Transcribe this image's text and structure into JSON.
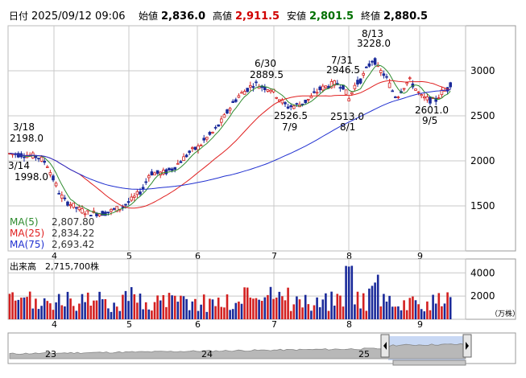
{
  "header": {
    "date_label": "日付",
    "datetime": "2025/09/12 09:06",
    "open_label": "始値",
    "open": "2,836.0",
    "high_label": "高値",
    "high": "2,911.5",
    "low_label": "安値",
    "low": "2,801.5",
    "close_label": "終値",
    "close": "2,880.5"
  },
  "colors": {
    "up": "#d32020",
    "down": "#1a2a9a",
    "ma5": "#2e8b2e",
    "ma25": "#e02020",
    "ma75": "#2030d0",
    "high_value": "#d00000",
    "low_value": "#007000",
    "grid": "#c8c8c8",
    "frame": "#999999"
  },
  "chart_data": [
    {
      "type": "candlestick",
      "x_axis": {
        "ticks": [
          "4",
          "5",
          "6",
          "7",
          "8",
          "9"
        ],
        "unit": "month"
      },
      "y_axis": {
        "ticks": [
          1500,
          2000,
          2500,
          3000
        ],
        "range": [
          1000,
          3500
        ],
        "position": "right"
      },
      "legend": [
        {
          "name": "MA(5)",
          "value": "2,807.80",
          "color": "#2e8b2e"
        },
        {
          "name": "MA(25)",
          "value": "2,834.22",
          "color": "#e02020"
        },
        {
          "name": "MA(75)",
          "value": "2,693.42",
          "color": "#2030d0"
        }
      ],
      "annotations": [
        {
          "label": "3/18",
          "value": "2198.0",
          "kind": "high"
        },
        {
          "label": "3/14",
          "value": "1998.0",
          "kind": "low"
        },
        {
          "label": "6/30",
          "value": "2889.5",
          "kind": "high"
        },
        {
          "label": "7/9",
          "value": "2526.5",
          "kind": "low"
        },
        {
          "label": "7/31",
          "value": "2946.5",
          "kind": "high"
        },
        {
          "label": "8/1",
          "value": "2513.0",
          "kind": "low"
        },
        {
          "label": "8/13",
          "value": "3228.0",
          "kind": "high"
        },
        {
          "label": "9/5",
          "value": "2601.0",
          "kind": "low"
        }
      ]
    },
    {
      "type": "bar",
      "title": "出来高",
      "latest_value": "2,715,700株",
      "x_axis": {
        "ticks": [
          "4",
          "5",
          "6",
          "7",
          "8",
          "9"
        ]
      },
      "y_axis": {
        "ticks": [
          2000,
          4000
        ],
        "unit": "（万株）"
      }
    },
    {
      "type": "area",
      "x_axis": {
        "ticks": [
          "23",
          "24",
          "25"
        ]
      }
    }
  ]
}
